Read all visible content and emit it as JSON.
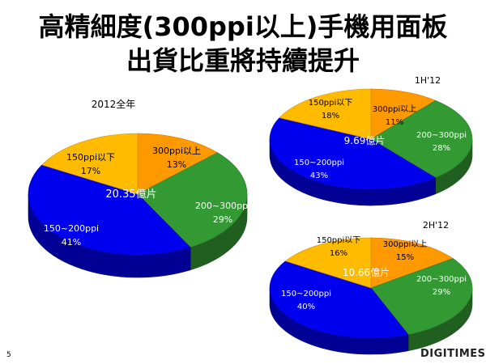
{
  "slide": {
    "title_line1": "高精細度(300ppi以上)手機用面板",
    "title_line2": "出貨比重將持續提升",
    "page_number": "5",
    "logo_text": "DIGITIMES"
  },
  "colors": {
    "orange": "#ff9900",
    "green": "#339933",
    "blue": "#0000ee",
    "yellow": "#ffbb00"
  },
  "chart_data": [
    {
      "type": "pie",
      "title": "2012全年",
      "center_label": "20.35億片",
      "slices": [
        {
          "label": "300ppi以上",
          "value": 13,
          "value_label": "13%",
          "color": "#ff9900"
        },
        {
          "label": "200~300ppi",
          "value": 29,
          "value_label": "29%",
          "color": "#339933"
        },
        {
          "label": "150~200ppi",
          "value": 41,
          "value_label": "41%",
          "color": "#0000ee"
        },
        {
          "label": "150ppi以下",
          "value": 17,
          "value_label": "17%",
          "color": "#ffbb00"
        }
      ]
    },
    {
      "type": "pie",
      "title": "1H'12",
      "center_label": "9.69億片",
      "slices": [
        {
          "label": "300ppi以上",
          "value": 11,
          "value_label": "11%",
          "color": "#ff9900"
        },
        {
          "label": "200~300ppi",
          "value": 28,
          "value_label": "28%",
          "color": "#339933"
        },
        {
          "label": "150~200ppi",
          "value": 43,
          "value_label": "43%",
          "color": "#0000ee"
        },
        {
          "label": "150ppi以下",
          "value": 18,
          "value_label": "18%",
          "color": "#ffbb00"
        }
      ]
    },
    {
      "type": "pie",
      "title": "2H'12",
      "center_label": "10.66億片",
      "slices": [
        {
          "label": "300ppi以上",
          "value": 15,
          "value_label": "15%",
          "color": "#ff9900"
        },
        {
          "label": "200~300ppi",
          "value": 29,
          "value_label": "29%",
          "color": "#339933"
        },
        {
          "label": "150~200ppi",
          "value": 40,
          "value_label": "40%",
          "color": "#0000ee"
        },
        {
          "label": "150ppi以下",
          "value": 16,
          "value_label": "16%",
          "color": "#ffbb00"
        }
      ]
    }
  ]
}
